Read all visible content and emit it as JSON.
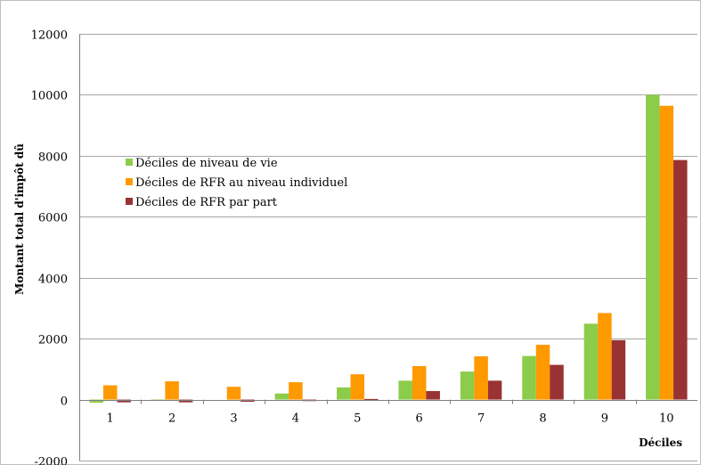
{
  "chart_data": {
    "type": "bar",
    "title": "",
    "xlabel": "Déciles",
    "ylabel": "Montant total d'impôt dû",
    "ylim": [
      -2000,
      12000
    ],
    "yticks": [
      -2000,
      0,
      2000,
      4000,
      6000,
      8000,
      10000,
      12000
    ],
    "grid": true,
    "legend_position": "left-center",
    "categories": [
      "1",
      "2",
      "3",
      "4",
      "5",
      "6",
      "7",
      "8",
      "9",
      "10"
    ],
    "series": [
      {
        "name": "Déciles de niveau de vie",
        "color": "#8ccc4b",
        "values": [
          -100,
          -30,
          0,
          200,
          400,
          620,
          920,
          1430,
          2490,
          10000
        ]
      },
      {
        "name": "Déciles de RFR au niveau individuel",
        "color": "#ff9900",
        "values": [
          470,
          600,
          420,
          570,
          830,
          1100,
          1420,
          1800,
          2840,
          9640
        ]
      },
      {
        "name": "Déciles de RFR par part",
        "color": "#993333",
        "values": [
          -90,
          -90,
          -70,
          -50,
          20,
          280,
          620,
          1140,
          1950,
          7860
        ]
      }
    ]
  }
}
